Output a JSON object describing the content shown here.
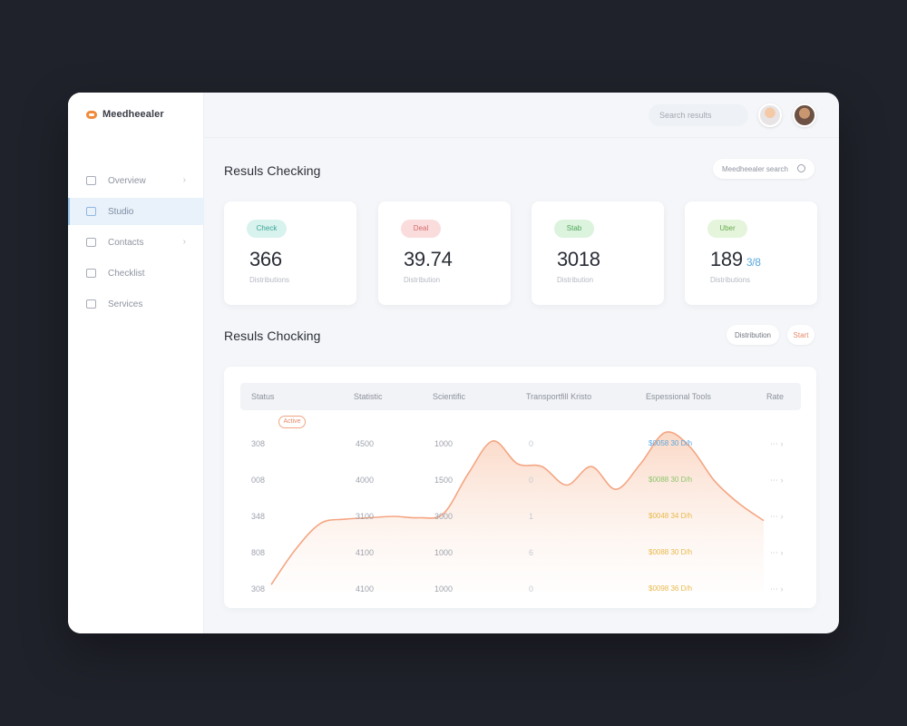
{
  "brand": {
    "name": "Meedheealer",
    "logo_icon": "cloud-logo-icon",
    "accent": "#f08a3a"
  },
  "sidebar": {
    "items": [
      {
        "label": "Overview",
        "icon": "square-icon",
        "active": false,
        "has_chevron": true
      },
      {
        "label": "Studio",
        "icon": "monitor-icon",
        "active": true,
        "has_chevron": false
      },
      {
        "label": "Contacts",
        "icon": "plus-box-icon",
        "active": false,
        "has_chevron": true
      },
      {
        "label": "Checklist",
        "icon": "list-icon",
        "active": false,
        "has_chevron": false
      },
      {
        "label": "Services",
        "icon": "folder-icon",
        "active": false,
        "has_chevron": false
      }
    ]
  },
  "header": {
    "search_placeholder": "Search results"
  },
  "section1": {
    "title": "Resuls Checking",
    "search_label": "Meedheealer search"
  },
  "stats": [
    {
      "badge": "Check",
      "value": "366",
      "unit": "",
      "sub": "Distributions",
      "badge_color": "#d8f2ee"
    },
    {
      "badge": "Deal",
      "value": "39.74",
      "unit": "",
      "sub": "Distribution",
      "badge_color": "#fadcdc"
    },
    {
      "badge": "Stab",
      "value": "3018",
      "unit": "",
      "sub": "Distribution",
      "badge_color": "#dcf3de"
    },
    {
      "badge": "Uber",
      "value": "189",
      "unit": "3/8",
      "sub": "Distributions",
      "badge_color": "#e4f5dc"
    }
  ],
  "section2": {
    "title": "Resuls Chocking",
    "button_primary": "Distribution",
    "button_secondary": "Start",
    "filter_chip": "Active"
  },
  "table": {
    "headers": [
      "Status",
      "Statistic",
      "Scientific",
      "Transportfill Kristo",
      "Espessional Tools",
      "Rate"
    ],
    "rows": [
      [
        "308",
        "4500",
        "1000",
        "0",
        "$0058 30 D/h",
        "dot"
      ],
      [
        "008",
        "4000",
        "1500",
        "0",
        "$0088 30 D/h",
        "dot"
      ],
      [
        "348",
        "3100",
        "3000",
        "1",
        "$0048 34 D/h",
        "dot"
      ],
      [
        "808",
        "4100",
        "1000",
        "6",
        "$0088 30 D/h",
        "dot"
      ],
      [
        "308",
        "4100",
        "1000",
        "0",
        "$0098 36 D/h",
        "dot"
      ]
    ],
    "link_colors": [
      "#5aa8e0",
      "#8cc56a",
      "#e8b84a",
      "#e8b84a",
      "#e8b84a"
    ]
  },
  "chart_data": {
    "type": "area",
    "x": [
      0,
      1,
      2,
      3,
      4,
      5,
      6,
      7,
      8,
      9,
      10,
      11,
      12,
      13,
      14,
      15,
      16,
      17,
      18,
      19,
      20
    ],
    "values": [
      5,
      30,
      48,
      51,
      52,
      53,
      52,
      55,
      83,
      106,
      90,
      88,
      75,
      88,
      72,
      90,
      112,
      102,
      78,
      62,
      50
    ],
    "ylim": [
      0,
      120
    ],
    "color": "#f4a582",
    "grid": false
  }
}
